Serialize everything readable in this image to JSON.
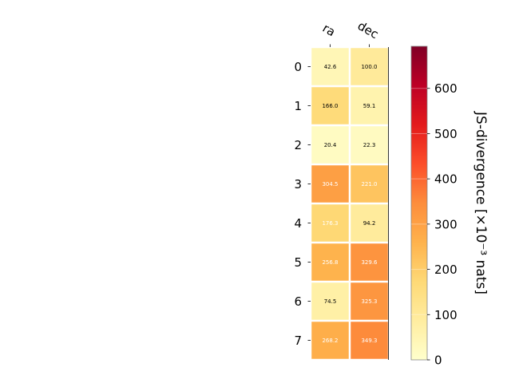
{
  "chart_data": {
    "type": "heatmap",
    "x_categories": [
      "ra",
      "dec"
    ],
    "y_categories": [
      "0",
      "1",
      "2",
      "3",
      "4",
      "5",
      "6",
      "7"
    ],
    "values": [
      [
        42.6,
        100.0
      ],
      [
        166.0,
        59.1
      ],
      [
        20.4,
        22.3
      ],
      [
        304.5,
        221.0
      ],
      [
        176.3,
        94.2
      ],
      [
        256.8,
        329.6
      ],
      [
        74.5,
        325.3
      ],
      [
        268.2,
        349.3
      ]
    ],
    "value_labels": [
      [
        "42.6",
        "100.0"
      ],
      [
        "166.0",
        "59.1"
      ],
      [
        "20.4",
        "22.3"
      ],
      [
        "304.5",
        "221.0"
      ],
      [
        "176.3",
        "94.2"
      ],
      [
        "256.8",
        "329.6"
      ],
      [
        "74.5",
        "325.3"
      ],
      [
        "268.2",
        "349.3"
      ]
    ],
    "colorbar": {
      "label": "JS-divergence [×10⁻³ nats]",
      "range": [
        0,
        693
      ],
      "ticks": [
        0,
        100,
        200,
        300,
        400,
        500,
        600
      ],
      "tick_labels": [
        "0",
        "100",
        "200",
        "300",
        "400",
        "500",
        "600"
      ],
      "colormap": "YlOrRd",
      "colormap_stops": [
        "#ffffcc",
        "#ffeda0",
        "#fed976",
        "#feb24c",
        "#fd8d3c",
        "#fc4e2a",
        "#e31a1c",
        "#bd0026",
        "#800026"
      ]
    },
    "text_threshold": 170,
    "text_color_light": "#ffffff",
    "text_color_dark": "#000000"
  }
}
